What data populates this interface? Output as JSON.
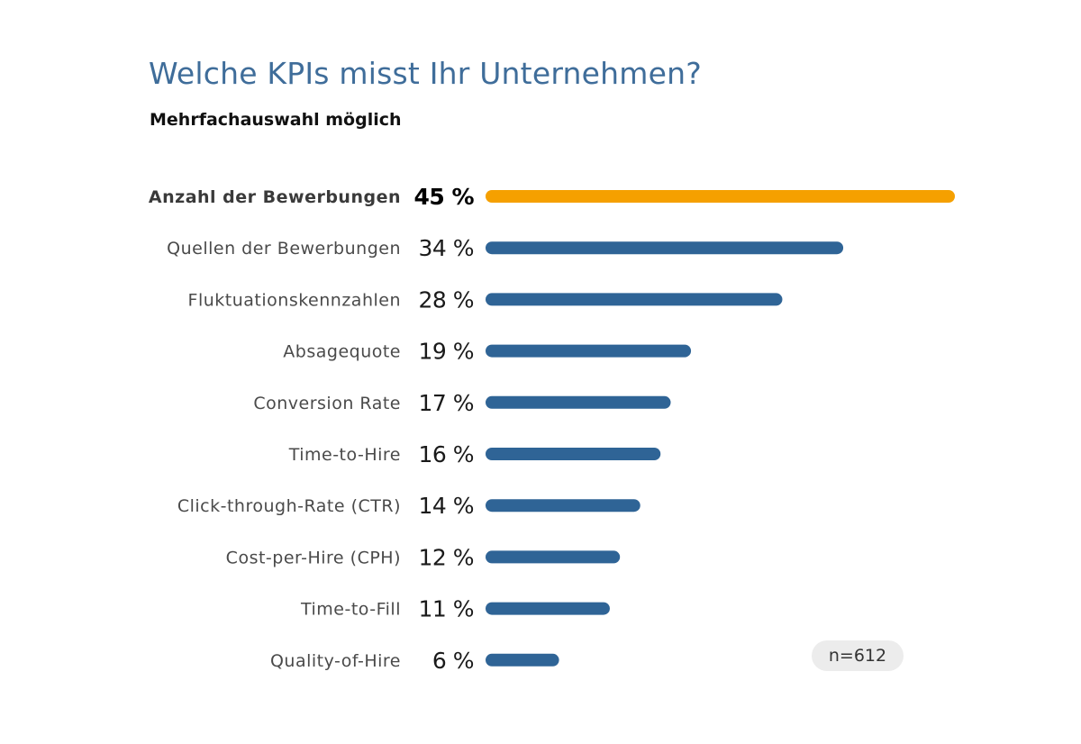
{
  "chart_data": {
    "type": "bar",
    "title": "Welche KPIs misst Ihr Unternehmen?",
    "subtitle": "Mehrfachauswahl möglich",
    "categories": [
      "Anzahl der Bewerbungen",
      "Quellen der Bewerbungen",
      "Fluktuationskennzahlen",
      "Absagequote",
      "Conversion Rate",
      "Time-to-Hire",
      "Click-through-Rate (CTR)",
      "Cost-per-Hire (CPH)",
      "Time-to-Fill",
      "Quality-of-Hire"
    ],
    "values": [
      45,
      34,
      28,
      19,
      17,
      16,
      14,
      12,
      11,
      6
    ],
    "value_labels": [
      "45 %",
      "34 %",
      "28 %",
      "19 %",
      "17 %",
      "16 %",
      "14 %",
      "12 %",
      "11 %",
      "6 %"
    ],
    "highlight_index": 0,
    "xlim": [
      0,
      45
    ],
    "grid": false,
    "legend": "none",
    "sample_size": "n=612"
  },
  "colors": {
    "title": "#3f6d9a",
    "highlight_bar": "#f5a000",
    "bar": "#2f6496",
    "badge_bg": "#ececec"
  }
}
